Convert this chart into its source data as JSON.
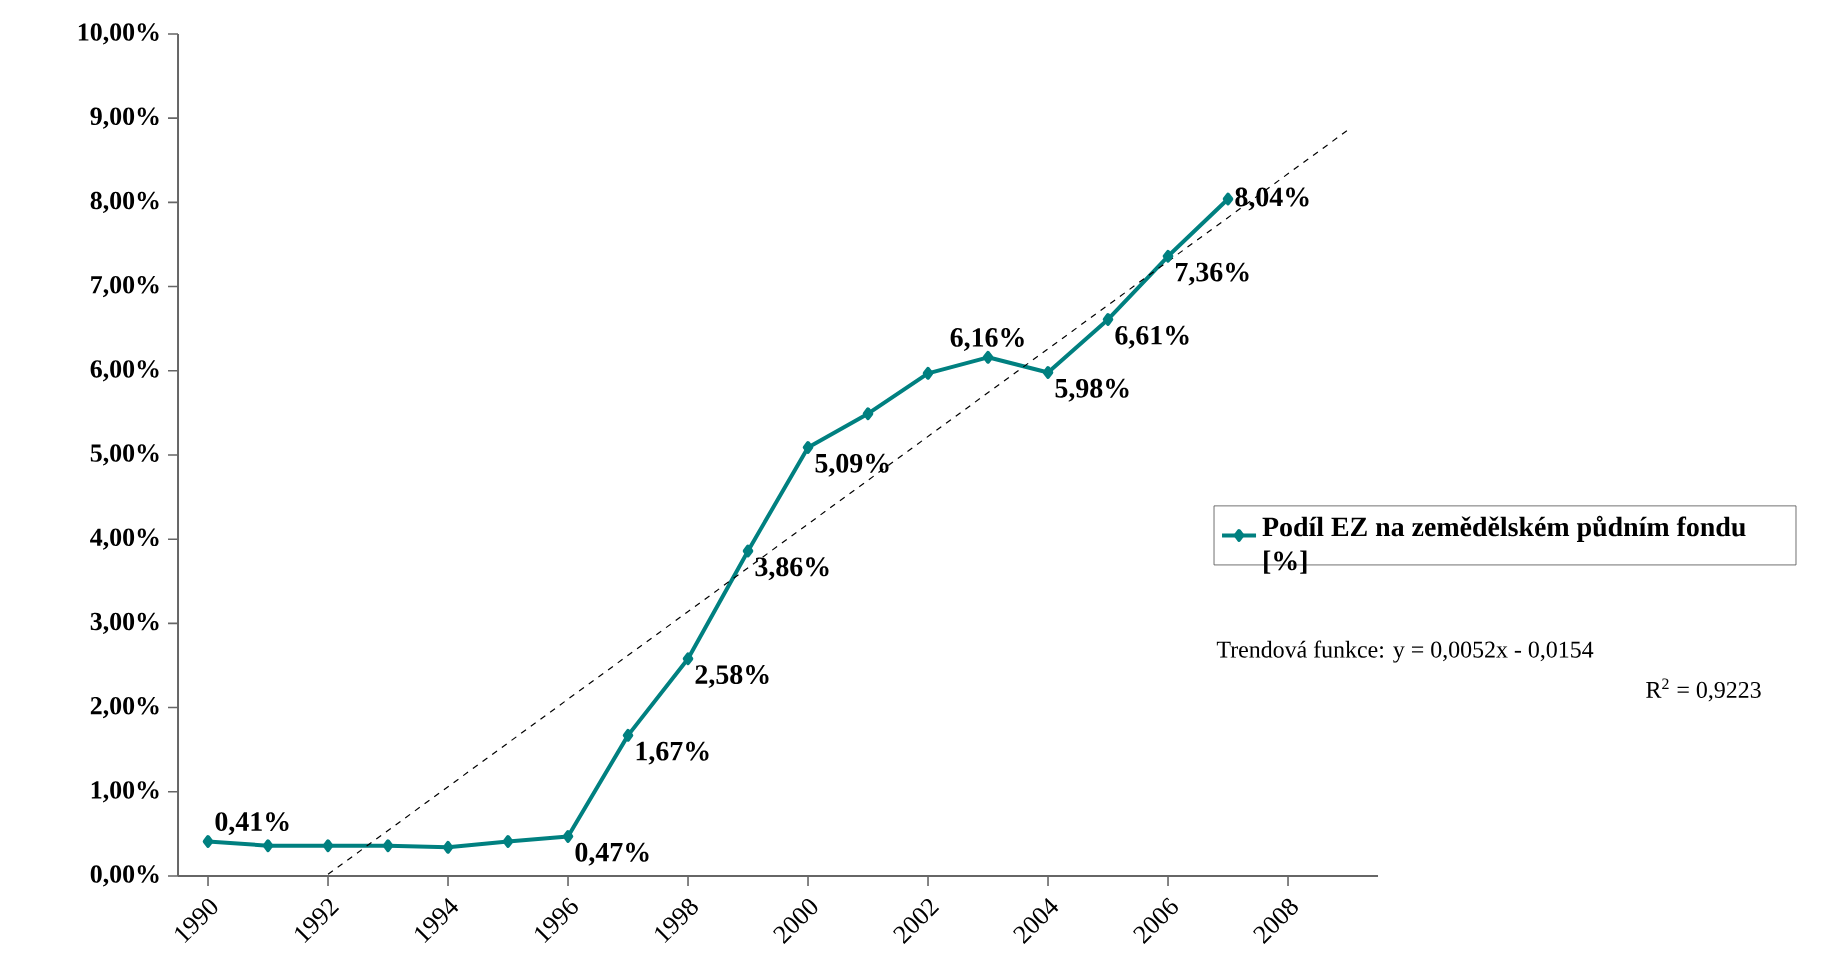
{
  "chart_data": {
    "type": "line",
    "x": [
      1990,
      1991,
      1992,
      1993,
      1994,
      1995,
      1996,
      1997,
      1998,
      1999,
      2000,
      2001,
      2002,
      2003,
      2004,
      2005,
      2006,
      2007
    ],
    "series": [
      {
        "name": "Podíl EZ na zemědělském půdním fondu [%]",
        "color": "#008080",
        "marker": "diamond",
        "values": [
          0.41,
          0.36,
          0.36,
          0.36,
          0.34,
          0.41,
          0.47,
          1.67,
          2.58,
          3.86,
          5.09,
          5.49,
          5.97,
          6.16,
          5.98,
          6.61,
          7.36,
          8.04
        ],
        "value_labels": [
          "0,41%",
          null,
          null,
          null,
          null,
          null,
          "0,47%",
          "1,67%",
          "2,58%",
          "3,86%",
          "5,09%",
          null,
          null,
          "6,16%",
          "5,98%",
          "6,61%",
          "7,36%",
          "8,04%"
        ]
      },
      {
        "type": "line",
        "x": [
          1992,
          2009
        ],
        "values": [
          0.02,
          8.86
        ],
        "color": "#000000",
        "line_style": "dashed",
        "marker": "none"
      }
    ],
    "xlim": [
      1989.5,
      2009.5
    ],
    "xticks": [
      1990,
      1992,
      1994,
      1996,
      1998,
      2000,
      2002,
      2004,
      2006,
      2008
    ],
    "ylim": [
      0,
      10
    ],
    "yticks": [
      {
        "value": 0,
        "label": "0,00%"
      },
      {
        "value": 1,
        "label": "1,00%"
      },
      {
        "value": 2,
        "label": "2,00%"
      },
      {
        "value": 3,
        "label": "3,00%"
      },
      {
        "value": 4,
        "label": "4,00%"
      },
      {
        "value": 5,
        "label": "5,00%"
      },
      {
        "value": 6,
        "label": "6,00%"
      },
      {
        "value": 7,
        "label": "7,00%"
      },
      {
        "value": 8,
        "label": "8,00%"
      },
      {
        "value": 9,
        "label": "9,00%"
      },
      {
        "value": 10,
        "label": "10,00%"
      }
    ],
    "legend": "right",
    "grid": false,
    "annotations": [
      "Trendová funkce:    y = 0,0052x - 0,0154",
      "R$^{2}$ = 0,9223"
    ]
  }
}
